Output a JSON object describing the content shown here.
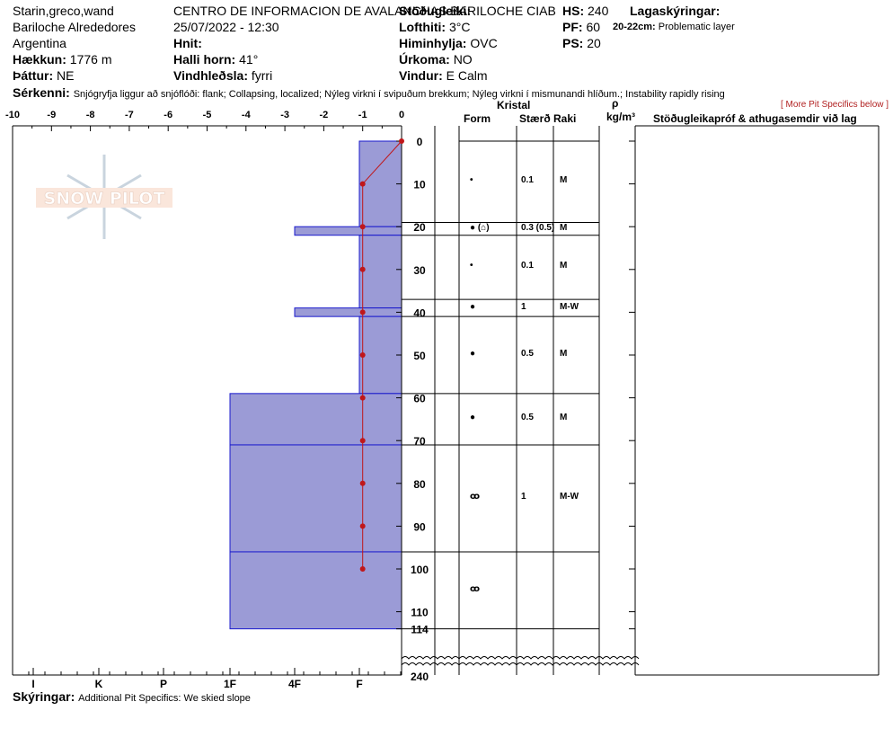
{
  "header": {
    "observer": "Starin,greco,wand",
    "location": "Bariloche Alrededores",
    "country": "Argentina",
    "elevation_label": "Hækkun:",
    "elevation_value": "1776 m",
    "aspect_label": "Þáttur:",
    "aspect_value": "NE",
    "operation": "CENTRO DE INFORMACION DE AVALANCHAS BARILOCHE CIAB",
    "datetime": "25/07/2022 - 12:30",
    "coord_label": "Hnit:",
    "coord_value": "",
    "slope_label": "Halli horn:",
    "slope_value": "41°",
    "wind_loading_label": "Vindhleðsla:",
    "wind_loading_value": "fyrri",
    "stability_label": "Stöðugleiki:",
    "stability_value": "",
    "air_temp_label": "Lofthiti:",
    "air_temp_value": "3°C",
    "sky_label": "Himinhylja:",
    "sky_value": "OVC",
    "precip_label": "Úrkoma:",
    "precip_value": "NO",
    "wind_label": "Vindur:",
    "wind_value": "E Calm",
    "hs_label": "HS:",
    "hs_value": "240",
    "pf_label": "PF:",
    "pf_value": "60",
    "ps_label": "PS:",
    "ps_value": "20",
    "layers_label": "Lagaskýringar:",
    "layer_note_range": "20-22cm:",
    "layer_note_text": "Problematic layer",
    "more_link": "[ More Pit Specifics below ]",
    "features_label": "Sérkenni:",
    "features_value": "Snjógryfja liggur að snjóflóði: flank; Collapsing, localized; Nýleg virkni í svipuðum brekkum; Nýleg virkni í mismunandi hlíðum.; Instability rapidly rising",
    "notes_label": "Skýringar:",
    "notes_value": "Additional Pit Specifics: We skied slope"
  },
  "columns": {
    "crystal": "Kristal",
    "form": "Form",
    "size": "Stærð",
    "moisture": "Raki",
    "density_symbol": "ρ",
    "density_unit": "kg/m³",
    "stability_tests": "Stöðugleikapróf & athugasemdir við lag"
  },
  "logo": {
    "text": "SNOW PILOT"
  },
  "chart_data": {
    "type": "snow-profile",
    "temp_axis": {
      "ticks": [
        "-10",
        "-9",
        "-8",
        "-7",
        "-6",
        "-5",
        "-4",
        "-3",
        "-2",
        "-1",
        "0"
      ],
      "range": [
        -10,
        0
      ]
    },
    "hardness_axis": {
      "ticks": [
        "I",
        "K",
        "P",
        "1F",
        "4F",
        "F"
      ]
    },
    "depth_axis": {
      "ticks": [
        "0",
        "10",
        "20",
        "30",
        "40",
        "50",
        "60",
        "70",
        "80",
        "90",
        "100",
        "110",
        "114",
        "240"
      ],
      "range_cm": [
        0,
        114
      ],
      "break_cm": 240
    },
    "temperature_profile": [
      {
        "depth": 0,
        "temp": 0
      },
      {
        "depth": 10,
        "temp": -1
      },
      {
        "depth": 20,
        "temp": -1
      },
      {
        "depth": 30,
        "temp": -1
      },
      {
        "depth": 40,
        "temp": -1
      },
      {
        "depth": 50,
        "temp": -1
      },
      {
        "depth": 60,
        "temp": -1
      },
      {
        "depth": 70,
        "temp": -1
      },
      {
        "depth": 80,
        "temp": -1
      },
      {
        "depth": 90,
        "temp": -1
      },
      {
        "depth": 100,
        "temp": -1
      }
    ],
    "hardness_layers": [
      {
        "top": 0,
        "bottom": 20,
        "hardness": "F"
      },
      {
        "top": 20,
        "bottom": 22,
        "hardness": "4F"
      },
      {
        "top": 22,
        "bottom": 39,
        "hardness": "F"
      },
      {
        "top": 39,
        "bottom": 41,
        "hardness": "4F"
      },
      {
        "top": 41,
        "bottom": 59,
        "hardness": "F"
      },
      {
        "top": 59,
        "bottom": 71,
        "hardness": "1F"
      },
      {
        "top": 71,
        "bottom": 96,
        "hardness": "1F"
      },
      {
        "top": 96,
        "bottom": 114,
        "hardness": "1F"
      }
    ],
    "layers": [
      {
        "top": 0,
        "bottom": 19,
        "form": "•",
        "size": "0.1",
        "moisture": "M"
      },
      {
        "top": 19,
        "bottom": 22,
        "form": "● (⌂)",
        "size": "0.3 (0.5)",
        "moisture": "M"
      },
      {
        "top": 22,
        "bottom": 37,
        "form": "•",
        "size": "0.1",
        "moisture": "M"
      },
      {
        "top": 37,
        "bottom": 41,
        "form": "●",
        "size": "1",
        "moisture": "M-W"
      },
      {
        "top": 41,
        "bottom": 59,
        "form": "●",
        "size": "0.5",
        "moisture": "M"
      },
      {
        "top": 59,
        "bottom": 71,
        "form": "●",
        "size": "0.5",
        "moisture": "M"
      },
      {
        "top": 71,
        "bottom": 96,
        "form": "ꝏ",
        "size": "1",
        "moisture": "M-W"
      },
      {
        "top": 96,
        "bottom": 114,
        "form": "ꝏ",
        "size": "",
        "moisture": ""
      }
    ]
  }
}
